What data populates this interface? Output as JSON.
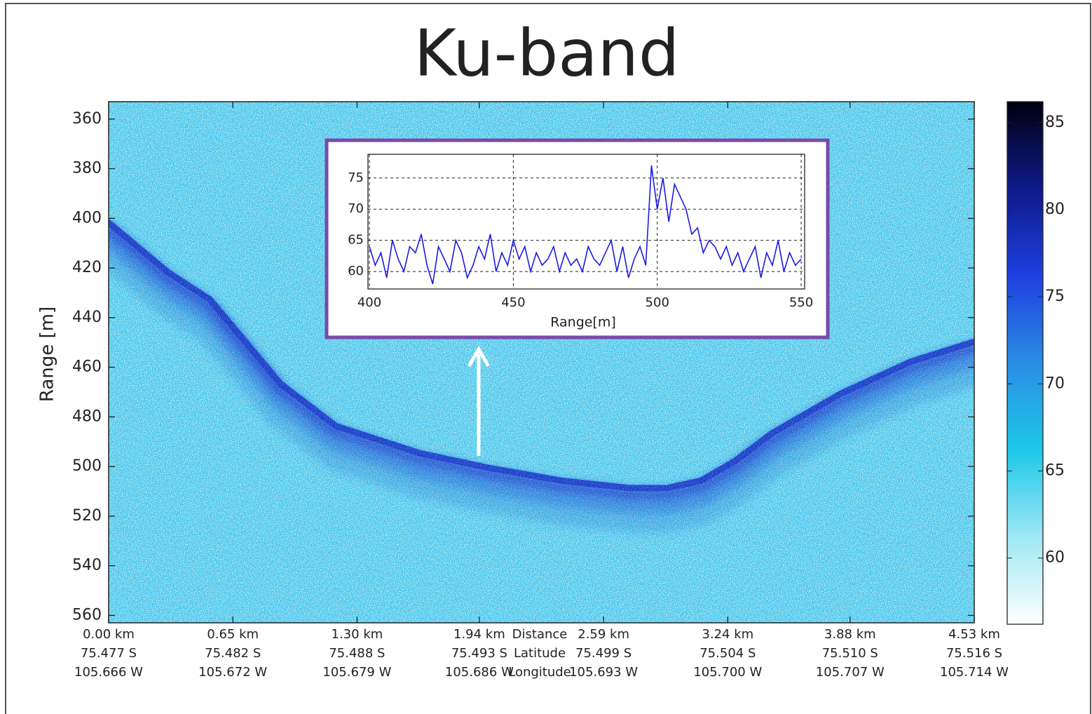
{
  "chart_data": [
    {
      "type": "echogram",
      "title": "Ku-band",
      "ylabel": "Range [m]",
      "xlim": [
        0,
        4.53
      ],
      "xticks": [
        {
          "value": 0,
          "label": "0.00 km"
        },
        {
          "value": 0.65,
          "label": "0.65 km"
        },
        {
          "value": 1.3,
          "label": "1.30 km"
        },
        {
          "value": 1.94,
          "label": "1.94 km"
        },
        {
          "value": 2.59,
          "label": "2.59 km"
        },
        {
          "value": 3.24,
          "label": "3.24 km"
        },
        {
          "value": 3.88,
          "label": "3.88 km"
        },
        {
          "value": 4.53,
          "label": "4.53 km"
        }
      ],
      "latitude_labels": [
        "75.477 S",
        "75.482 S",
        "75.488 S",
        "75.493 S",
        "75.499 S",
        "75.504 S",
        "75.510 S",
        "75.516 S"
      ],
      "longitude_labels": [
        "105.666 W",
        "105.672 W",
        "105.679 W",
        "105.686 W",
        "105.693 W",
        "105.700 W",
        "105.707 W",
        "105.714 W"
      ],
      "row_labels": [
        "Distance",
        "Latitude",
        "Longitude"
      ],
      "ylim": [
        353,
        563
      ],
      "yticks": [
        360,
        380,
        400,
        420,
        440,
        460,
        480,
        500,
        520,
        540,
        560
      ],
      "background_color": "#45c8ea",
      "x": [
        0,
        0.31,
        0.53,
        0.9,
        1.19,
        1.63,
        2.0,
        2.37,
        2.73,
        2.92,
        3.1,
        3.28,
        3.47,
        3.83,
        4.2,
        4.53
      ],
      "series": [
        {
          "color": "#1434c8",
          "values": [
            400,
            420,
            431,
            465,
            482,
            493,
            499,
            504,
            507,
            507,
            504,
            496,
            485,
            469,
            456,
            448
          ]
        }
      ],
      "colorbar": {
        "clim": [
          56.2,
          86.2
        ],
        "ticks": [
          60,
          65,
          70,
          75,
          80,
          85
        ],
        "colors": [
          "#ffffff",
          "#9ee8f4",
          "#1ec8e8",
          "#2a8ee4",
          "#1f3fe0",
          "#0e1a8a",
          "#000010"
        ]
      }
    },
    {
      "type": "line",
      "xlabel": "Range[m]",
      "color": "#1a1ae6",
      "grid": true,
      "xlim": [
        399.5,
        551.2
      ],
      "xticks": [
        400,
        450,
        500,
        550
      ],
      "ylim": [
        57.2,
        78.8
      ],
      "yticks": [
        60,
        65,
        70,
        75
      ],
      "x": [
        400,
        402,
        404,
        406,
        408,
        410,
        412,
        414,
        416,
        418,
        420,
        422,
        424,
        426,
        428,
        430,
        432,
        434,
        436,
        438,
        440,
        442,
        444,
        446,
        448,
        450,
        452,
        454,
        456,
        458,
        460,
        462,
        464,
        466,
        468,
        470,
        472,
        474,
        476,
        478,
        480,
        482,
        484,
        486,
        488,
        490,
        492,
        494,
        496,
        498,
        500,
        502,
        504,
        506,
        508,
        510,
        512,
        514,
        516,
        518,
        520,
        522,
        524,
        526,
        528,
        530,
        532,
        534,
        536,
        538,
        540,
        542,
        544,
        546,
        548,
        550
      ],
      "values": [
        64,
        61,
        63,
        59,
        65,
        62,
        60,
        64,
        63,
        66,
        61,
        58,
        64,
        62,
        60,
        65,
        63,
        59,
        61,
        64,
        62,
        66,
        60,
        63,
        61,
        65,
        62,
        64,
        60,
        63,
        61,
        62,
        64,
        60,
        63,
        61,
        62,
        60,
        64,
        62,
        61,
        63,
        65,
        60,
        64,
        59,
        62,
        64,
        61,
        77,
        70,
        75,
        68,
        74,
        72,
        70,
        66,
        67,
        63,
        65,
        64,
        62,
        64,
        61,
        63,
        60,
        62,
        64,
        59,
        63,
        61,
        65,
        60,
        63,
        61,
        62
      ]
    }
  ]
}
